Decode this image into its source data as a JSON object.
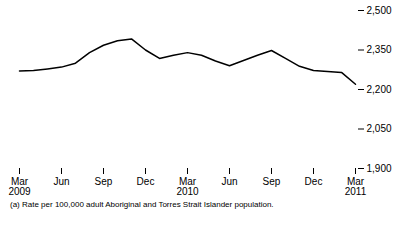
{
  "chart_data": {
    "type": "line",
    "caption": "(a) Rate per 100,000 adult Aboriginal and Torres Strait Islander population.",
    "categories": [
      "Mar\n2009",
      null,
      null,
      "Jun",
      null,
      null,
      "Sep",
      null,
      null,
      "Dec",
      null,
      null,
      "Mar\n2010",
      null,
      null,
      "Jun",
      null,
      null,
      "Sep",
      null,
      null,
      "Dec",
      null,
      null,
      "Mar\n2011"
    ],
    "values": [
      2270,
      2272,
      2278,
      2285,
      2300,
      2340,
      2368,
      2385,
      2392,
      2350,
      2318,
      2330,
      2340,
      2330,
      2308,
      2290,
      2310,
      2330,
      2348,
      2318,
      2288,
      2272,
      2268,
      2265,
      2220
    ],
    "color": "#000000",
    "ylim": [
      1900,
      2500
    ],
    "yticks": [
      1900,
      2050,
      2200,
      2350,
      2500
    ],
    "grid": false
  }
}
